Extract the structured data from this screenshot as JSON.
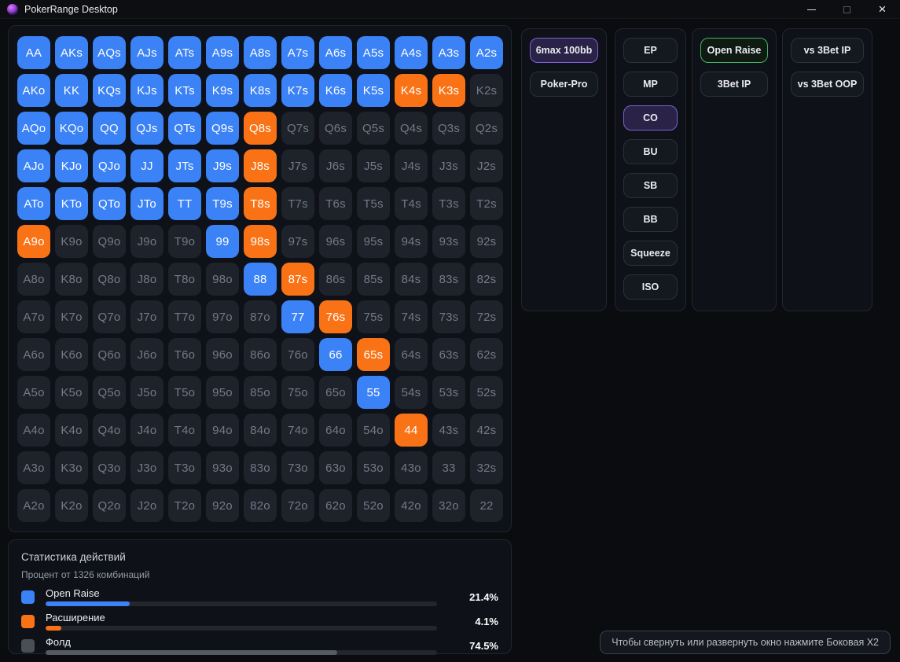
{
  "titlebar": {
    "title": "PokerRange Desktop",
    "icons": {
      "minimize": "minimize-icon",
      "maximize": "maximize-icon",
      "close": "close-icon",
      "app": "poker-chip-icon"
    }
  },
  "colors": {
    "raise": "#3b82f6",
    "expand": "#f97316",
    "fold_cell": "#1d222b",
    "accent_purple": "#7b61d6",
    "accent_green": "#41b368"
  },
  "grid": {
    "states_legend": {
      "raise": "Open Raise (blue)",
      "expand": "Расширение (orange)",
      "fold": "Фолд (gray)"
    },
    "rows": [
      [
        [
          "AA",
          "raise"
        ],
        [
          "AKs",
          "raise"
        ],
        [
          "AQs",
          "raise"
        ],
        [
          "AJs",
          "raise"
        ],
        [
          "ATs",
          "raise"
        ],
        [
          "A9s",
          "raise"
        ],
        [
          "A8s",
          "raise"
        ],
        [
          "A7s",
          "raise"
        ],
        [
          "A6s",
          "raise"
        ],
        [
          "A5s",
          "raise"
        ],
        [
          "A4s",
          "raise"
        ],
        [
          "A3s",
          "raise"
        ],
        [
          "A2s",
          "raise"
        ]
      ],
      [
        [
          "AKo",
          "raise"
        ],
        [
          "KK",
          "raise"
        ],
        [
          "KQs",
          "raise"
        ],
        [
          "KJs",
          "raise"
        ],
        [
          "KTs",
          "raise"
        ],
        [
          "K9s",
          "raise"
        ],
        [
          "K8s",
          "raise"
        ],
        [
          "K7s",
          "raise"
        ],
        [
          "K6s",
          "raise"
        ],
        [
          "K5s",
          "raise"
        ],
        [
          "K4s",
          "expand"
        ],
        [
          "K3s",
          "expand"
        ],
        [
          "K2s",
          "fold"
        ]
      ],
      [
        [
          "AQo",
          "raise"
        ],
        [
          "KQo",
          "raise"
        ],
        [
          "QQ",
          "raise"
        ],
        [
          "QJs",
          "raise"
        ],
        [
          "QTs",
          "raise"
        ],
        [
          "Q9s",
          "raise"
        ],
        [
          "Q8s",
          "expand"
        ],
        [
          "Q7s",
          "fold"
        ],
        [
          "Q6s",
          "fold"
        ],
        [
          "Q5s",
          "fold"
        ],
        [
          "Q4s",
          "fold"
        ],
        [
          "Q3s",
          "fold"
        ],
        [
          "Q2s",
          "fold"
        ]
      ],
      [
        [
          "AJo",
          "raise"
        ],
        [
          "KJo",
          "raise"
        ],
        [
          "QJo",
          "raise"
        ],
        [
          "JJ",
          "raise"
        ],
        [
          "JTs",
          "raise"
        ],
        [
          "J9s",
          "raise"
        ],
        [
          "J8s",
          "expand"
        ],
        [
          "J7s",
          "fold"
        ],
        [
          "J6s",
          "fold"
        ],
        [
          "J5s",
          "fold"
        ],
        [
          "J4s",
          "fold"
        ],
        [
          "J3s",
          "fold"
        ],
        [
          "J2s",
          "fold"
        ]
      ],
      [
        [
          "ATo",
          "raise"
        ],
        [
          "KTo",
          "raise"
        ],
        [
          "QTo",
          "raise"
        ],
        [
          "JTo",
          "raise"
        ],
        [
          "TT",
          "raise"
        ],
        [
          "T9s",
          "raise"
        ],
        [
          "T8s",
          "expand"
        ],
        [
          "T7s",
          "fold"
        ],
        [
          "T6s",
          "fold"
        ],
        [
          "T5s",
          "fold"
        ],
        [
          "T4s",
          "fold"
        ],
        [
          "T3s",
          "fold"
        ],
        [
          "T2s",
          "fold"
        ]
      ],
      [
        [
          "A9o",
          "expand"
        ],
        [
          "K9o",
          "fold"
        ],
        [
          "Q9o",
          "fold"
        ],
        [
          "J9o",
          "fold"
        ],
        [
          "T9o",
          "fold"
        ],
        [
          "99",
          "raise"
        ],
        [
          "98s",
          "expand"
        ],
        [
          "97s",
          "fold"
        ],
        [
          "96s",
          "fold"
        ],
        [
          "95s",
          "fold"
        ],
        [
          "94s",
          "fold"
        ],
        [
          "93s",
          "fold"
        ],
        [
          "92s",
          "fold"
        ]
      ],
      [
        [
          "A8o",
          "fold"
        ],
        [
          "K8o",
          "fold"
        ],
        [
          "Q8o",
          "fold"
        ],
        [
          "J8o",
          "fold"
        ],
        [
          "T8o",
          "fold"
        ],
        [
          "98o",
          "fold"
        ],
        [
          "88",
          "raise"
        ],
        [
          "87s",
          "expand"
        ],
        [
          "86s",
          "fold"
        ],
        [
          "85s",
          "fold"
        ],
        [
          "84s",
          "fold"
        ],
        [
          "83s",
          "fold"
        ],
        [
          "82s",
          "fold"
        ]
      ],
      [
        [
          "A7o",
          "fold"
        ],
        [
          "K7o",
          "fold"
        ],
        [
          "Q7o",
          "fold"
        ],
        [
          "J7o",
          "fold"
        ],
        [
          "T7o",
          "fold"
        ],
        [
          "97o",
          "fold"
        ],
        [
          "87o",
          "fold"
        ],
        [
          "77",
          "raise"
        ],
        [
          "76s",
          "expand"
        ],
        [
          "75s",
          "fold"
        ],
        [
          "74s",
          "fold"
        ],
        [
          "73s",
          "fold"
        ],
        [
          "72s",
          "fold"
        ]
      ],
      [
        [
          "A6o",
          "fold"
        ],
        [
          "K6o",
          "fold"
        ],
        [
          "Q6o",
          "fold"
        ],
        [
          "J6o",
          "fold"
        ],
        [
          "T6o",
          "fold"
        ],
        [
          "96o",
          "fold"
        ],
        [
          "86o",
          "fold"
        ],
        [
          "76o",
          "fold"
        ],
        [
          "66",
          "raise"
        ],
        [
          "65s",
          "expand"
        ],
        [
          "64s",
          "fold"
        ],
        [
          "63s",
          "fold"
        ],
        [
          "62s",
          "fold"
        ]
      ],
      [
        [
          "A5o",
          "fold"
        ],
        [
          "K5o",
          "fold"
        ],
        [
          "Q5o",
          "fold"
        ],
        [
          "J5o",
          "fold"
        ],
        [
          "T5o",
          "fold"
        ],
        [
          "95o",
          "fold"
        ],
        [
          "85o",
          "fold"
        ],
        [
          "75o",
          "fold"
        ],
        [
          "65o",
          "fold"
        ],
        [
          "55",
          "raise"
        ],
        [
          "54s",
          "fold"
        ],
        [
          "53s",
          "fold"
        ],
        [
          "52s",
          "fold"
        ]
      ],
      [
        [
          "A4o",
          "fold"
        ],
        [
          "K4o",
          "fold"
        ],
        [
          "Q4o",
          "fold"
        ],
        [
          "J4o",
          "fold"
        ],
        [
          "T4o",
          "fold"
        ],
        [
          "94o",
          "fold"
        ],
        [
          "84o",
          "fold"
        ],
        [
          "74o",
          "fold"
        ],
        [
          "64o",
          "fold"
        ],
        [
          "54o",
          "fold"
        ],
        [
          "44",
          "expand"
        ],
        [
          "43s",
          "fold"
        ],
        [
          "42s",
          "fold"
        ]
      ],
      [
        [
          "A3o",
          "fold"
        ],
        [
          "K3o",
          "fold"
        ],
        [
          "Q3o",
          "fold"
        ],
        [
          "J3o",
          "fold"
        ],
        [
          "T3o",
          "fold"
        ],
        [
          "93o",
          "fold"
        ],
        [
          "83o",
          "fold"
        ],
        [
          "73o",
          "fold"
        ],
        [
          "63o",
          "fold"
        ],
        [
          "53o",
          "fold"
        ],
        [
          "43o",
          "fold"
        ],
        [
          "33",
          "fold"
        ],
        [
          "32s",
          "fold"
        ]
      ],
      [
        [
          "A2o",
          "fold"
        ],
        [
          "K2o",
          "fold"
        ],
        [
          "Q2o",
          "fold"
        ],
        [
          "J2o",
          "fold"
        ],
        [
          "T2o",
          "fold"
        ],
        [
          "92o",
          "fold"
        ],
        [
          "82o",
          "fold"
        ],
        [
          "72o",
          "fold"
        ],
        [
          "62o",
          "fold"
        ],
        [
          "52o",
          "fold"
        ],
        [
          "42o",
          "fold"
        ],
        [
          "32o",
          "fold"
        ],
        [
          "22",
          "fold"
        ]
      ]
    ]
  },
  "panels": {
    "preset": {
      "buttons": [
        {
          "label": "6max 100bb",
          "selected": true,
          "accent": "purple"
        },
        {
          "label": "Poker-Pro",
          "selected": false
        }
      ]
    },
    "position": {
      "buttons": [
        {
          "label": "EP"
        },
        {
          "label": "MP"
        },
        {
          "label": "CO",
          "selected": true,
          "accent": "purple"
        },
        {
          "label": "BU"
        },
        {
          "label": "SB"
        },
        {
          "label": "BB"
        },
        {
          "label": "Squeeze"
        },
        {
          "label": "ISO"
        }
      ]
    },
    "action": {
      "buttons": [
        {
          "label": "Open Raise",
          "selected": true,
          "accent": "green"
        },
        {
          "label": "3Bet IP"
        }
      ]
    },
    "versus": {
      "buttons": [
        {
          "label": "vs 3Bet IP"
        },
        {
          "label": "vs 3Bet OOP"
        }
      ]
    }
  },
  "stats": {
    "title": "Статистика действий",
    "subtitle": "Процент от 1326 комбинаций",
    "rows": [
      {
        "label": "Open Raise",
        "value": "21.4%",
        "pct": 21.4,
        "color": "#3b82f6",
        "swatch": "#3b82f6"
      },
      {
        "label": "Расширение",
        "value": "4.1%",
        "pct": 4.1,
        "color": "#f97316",
        "swatch": "#f97316"
      },
      {
        "label": "Фолд",
        "value": "74.5%",
        "pct": 74.5,
        "color": "#565b63",
        "swatch": "#4a4e57"
      }
    ]
  },
  "tooltip": {
    "text": "Чтобы свернуть или развернуть окно нажмите Боковая X2"
  }
}
